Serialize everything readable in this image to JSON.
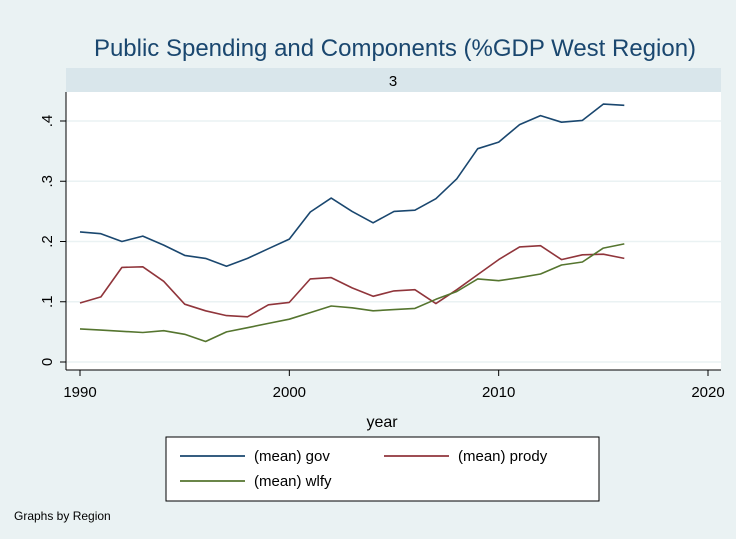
{
  "chart_data": {
    "type": "line",
    "title": "Public Spending and Components (%GDP West Region)",
    "panel_label": "3",
    "xlabel": "year",
    "ylabel": "",
    "xlim": [
      1990,
      2020
    ],
    "ylim": [
      0,
      0.45
    ],
    "x_ticks": [
      1990,
      2000,
      2010,
      2020
    ],
    "x_tick_labels": [
      "1990",
      "2000",
      "2010",
      "2020"
    ],
    "y_ticks": [
      0,
      0.1,
      0.2,
      0.3,
      0.4
    ],
    "y_tick_labels": [
      "0",
      ".1",
      ".2",
      ".3",
      ".4"
    ],
    "grid": "horizontal",
    "legend_position": "bottom",
    "note": "Graphs by Region",
    "x": [
      1990,
      1991,
      1992,
      1993,
      1994,
      1995,
      1996,
      1997,
      1998,
      1999,
      2000,
      2001,
      2002,
      2003,
      2004,
      2005,
      2006,
      2007,
      2008,
      2009,
      2010,
      2011,
      2012,
      2013,
      2014,
      2015,
      2016
    ],
    "series": [
      {
        "name": "(mean) gov",
        "color": "#1a476f",
        "values": [
          0.216,
          0.213,
          0.2,
          0.209,
          0.194,
          0.177,
          0.172,
          0.159,
          0.172,
          0.188,
          0.204,
          0.249,
          0.272,
          0.25,
          0.231,
          0.25,
          0.252,
          0.271,
          0.304,
          0.354,
          0.365,
          0.394,
          0.409,
          0.398,
          0.401,
          0.428,
          0.426
        ]
      },
      {
        "name": "(mean) prody",
        "color": "#90353b",
        "values": [
          0.098,
          0.108,
          0.157,
          0.158,
          0.134,
          0.096,
          0.085,
          0.077,
          0.075,
          0.095,
          0.099,
          0.138,
          0.14,
          0.123,
          0.109,
          0.118,
          0.12,
          0.097,
          0.12,
          0.145,
          0.17,
          0.191,
          0.193,
          0.17,
          0.178,
          0.179,
          0.172
        ]
      },
      {
        "name": "(mean) wlfy",
        "color": "#55752f",
        "values": [
          0.055,
          0.053,
          0.051,
          0.049,
          0.052,
          0.046,
          0.034,
          0.05,
          0.057,
          0.064,
          0.071,
          0.082,
          0.093,
          0.09,
          0.085,
          0.087,
          0.089,
          0.104,
          0.117,
          0.138,
          0.135,
          0.14,
          0.146,
          0.161,
          0.166,
          0.189,
          0.196
        ]
      }
    ]
  }
}
